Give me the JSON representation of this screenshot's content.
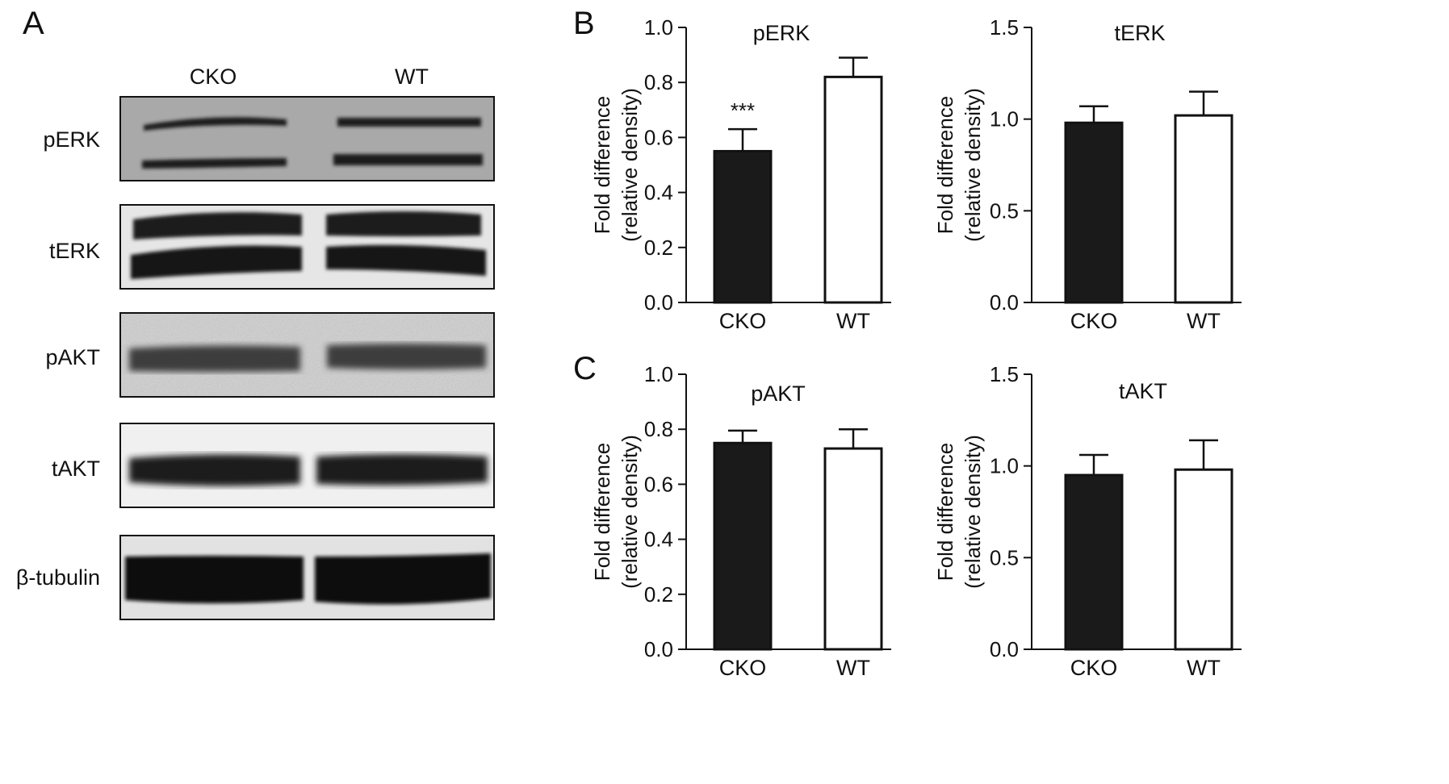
{
  "panel_letters": {
    "a": "A",
    "b": "B",
    "c": "C"
  },
  "blot": {
    "lane_labels": [
      "CKO",
      "WT"
    ],
    "rows": [
      {
        "label": "pERK"
      },
      {
        "label": "tERK"
      },
      {
        "label": "pAKT"
      },
      {
        "label": "tAKT"
      },
      {
        "label": "β-tubulin"
      }
    ]
  },
  "chart_data": [
    {
      "type": "bar",
      "title": "pERK",
      "categories": [
        "CKO",
        "WT"
      ],
      "values": [
        0.55,
        0.82
      ],
      "errors": [
        0.08,
        0.07
      ],
      "fills": [
        "#1a1a1a",
        "#ffffff"
      ],
      "annotations": [
        "***",
        ""
      ],
      "ylabel_lines": [
        "Fold difference",
        "(relative density)"
      ],
      "ylim": [
        0,
        1.0
      ],
      "yticks": [
        "0.0",
        "0.2",
        "0.4",
        "0.6",
        "0.8",
        "1.0"
      ]
    },
    {
      "type": "bar",
      "title": "tERK",
      "categories": [
        "CKO",
        "WT"
      ],
      "values": [
        0.98,
        1.02
      ],
      "errors": [
        0.09,
        0.13
      ],
      "fills": [
        "#1a1a1a",
        "#ffffff"
      ],
      "annotations": [
        "",
        ""
      ],
      "ylabel_lines": [
        "Fold difference",
        "(relative density)"
      ],
      "ylim": [
        0,
        1.5
      ],
      "yticks": [
        "0.0",
        "0.5",
        "1.0",
        "1.5"
      ]
    },
    {
      "type": "bar",
      "title": "pAKT",
      "categories": [
        "CKO",
        "WT"
      ],
      "values": [
        0.75,
        0.73
      ],
      "errors": [
        0.045,
        0.07
      ],
      "fills": [
        "#1a1a1a",
        "#ffffff"
      ],
      "annotations": [
        "",
        ""
      ],
      "ylabel_lines": [
        "Fold difference",
        "(relative density)"
      ],
      "ylim": [
        0,
        1.0
      ],
      "yticks": [
        "0.0",
        "0.2",
        "0.4",
        "0.6",
        "0.8",
        "1.0"
      ]
    },
    {
      "type": "bar",
      "title": "tAKT",
      "categories": [
        "CKO",
        "WT"
      ],
      "values": [
        0.95,
        0.98
      ],
      "errors": [
        0.11,
        0.16
      ],
      "fills": [
        "#1a1a1a",
        "#ffffff"
      ],
      "annotations": [
        "",
        ""
      ],
      "ylabel_lines": [
        "Fold difference",
        "(relative density)"
      ],
      "ylim": [
        0,
        1.5
      ],
      "yticks": [
        "0.0",
        "0.5",
        "1.0",
        "1.5"
      ]
    }
  ]
}
